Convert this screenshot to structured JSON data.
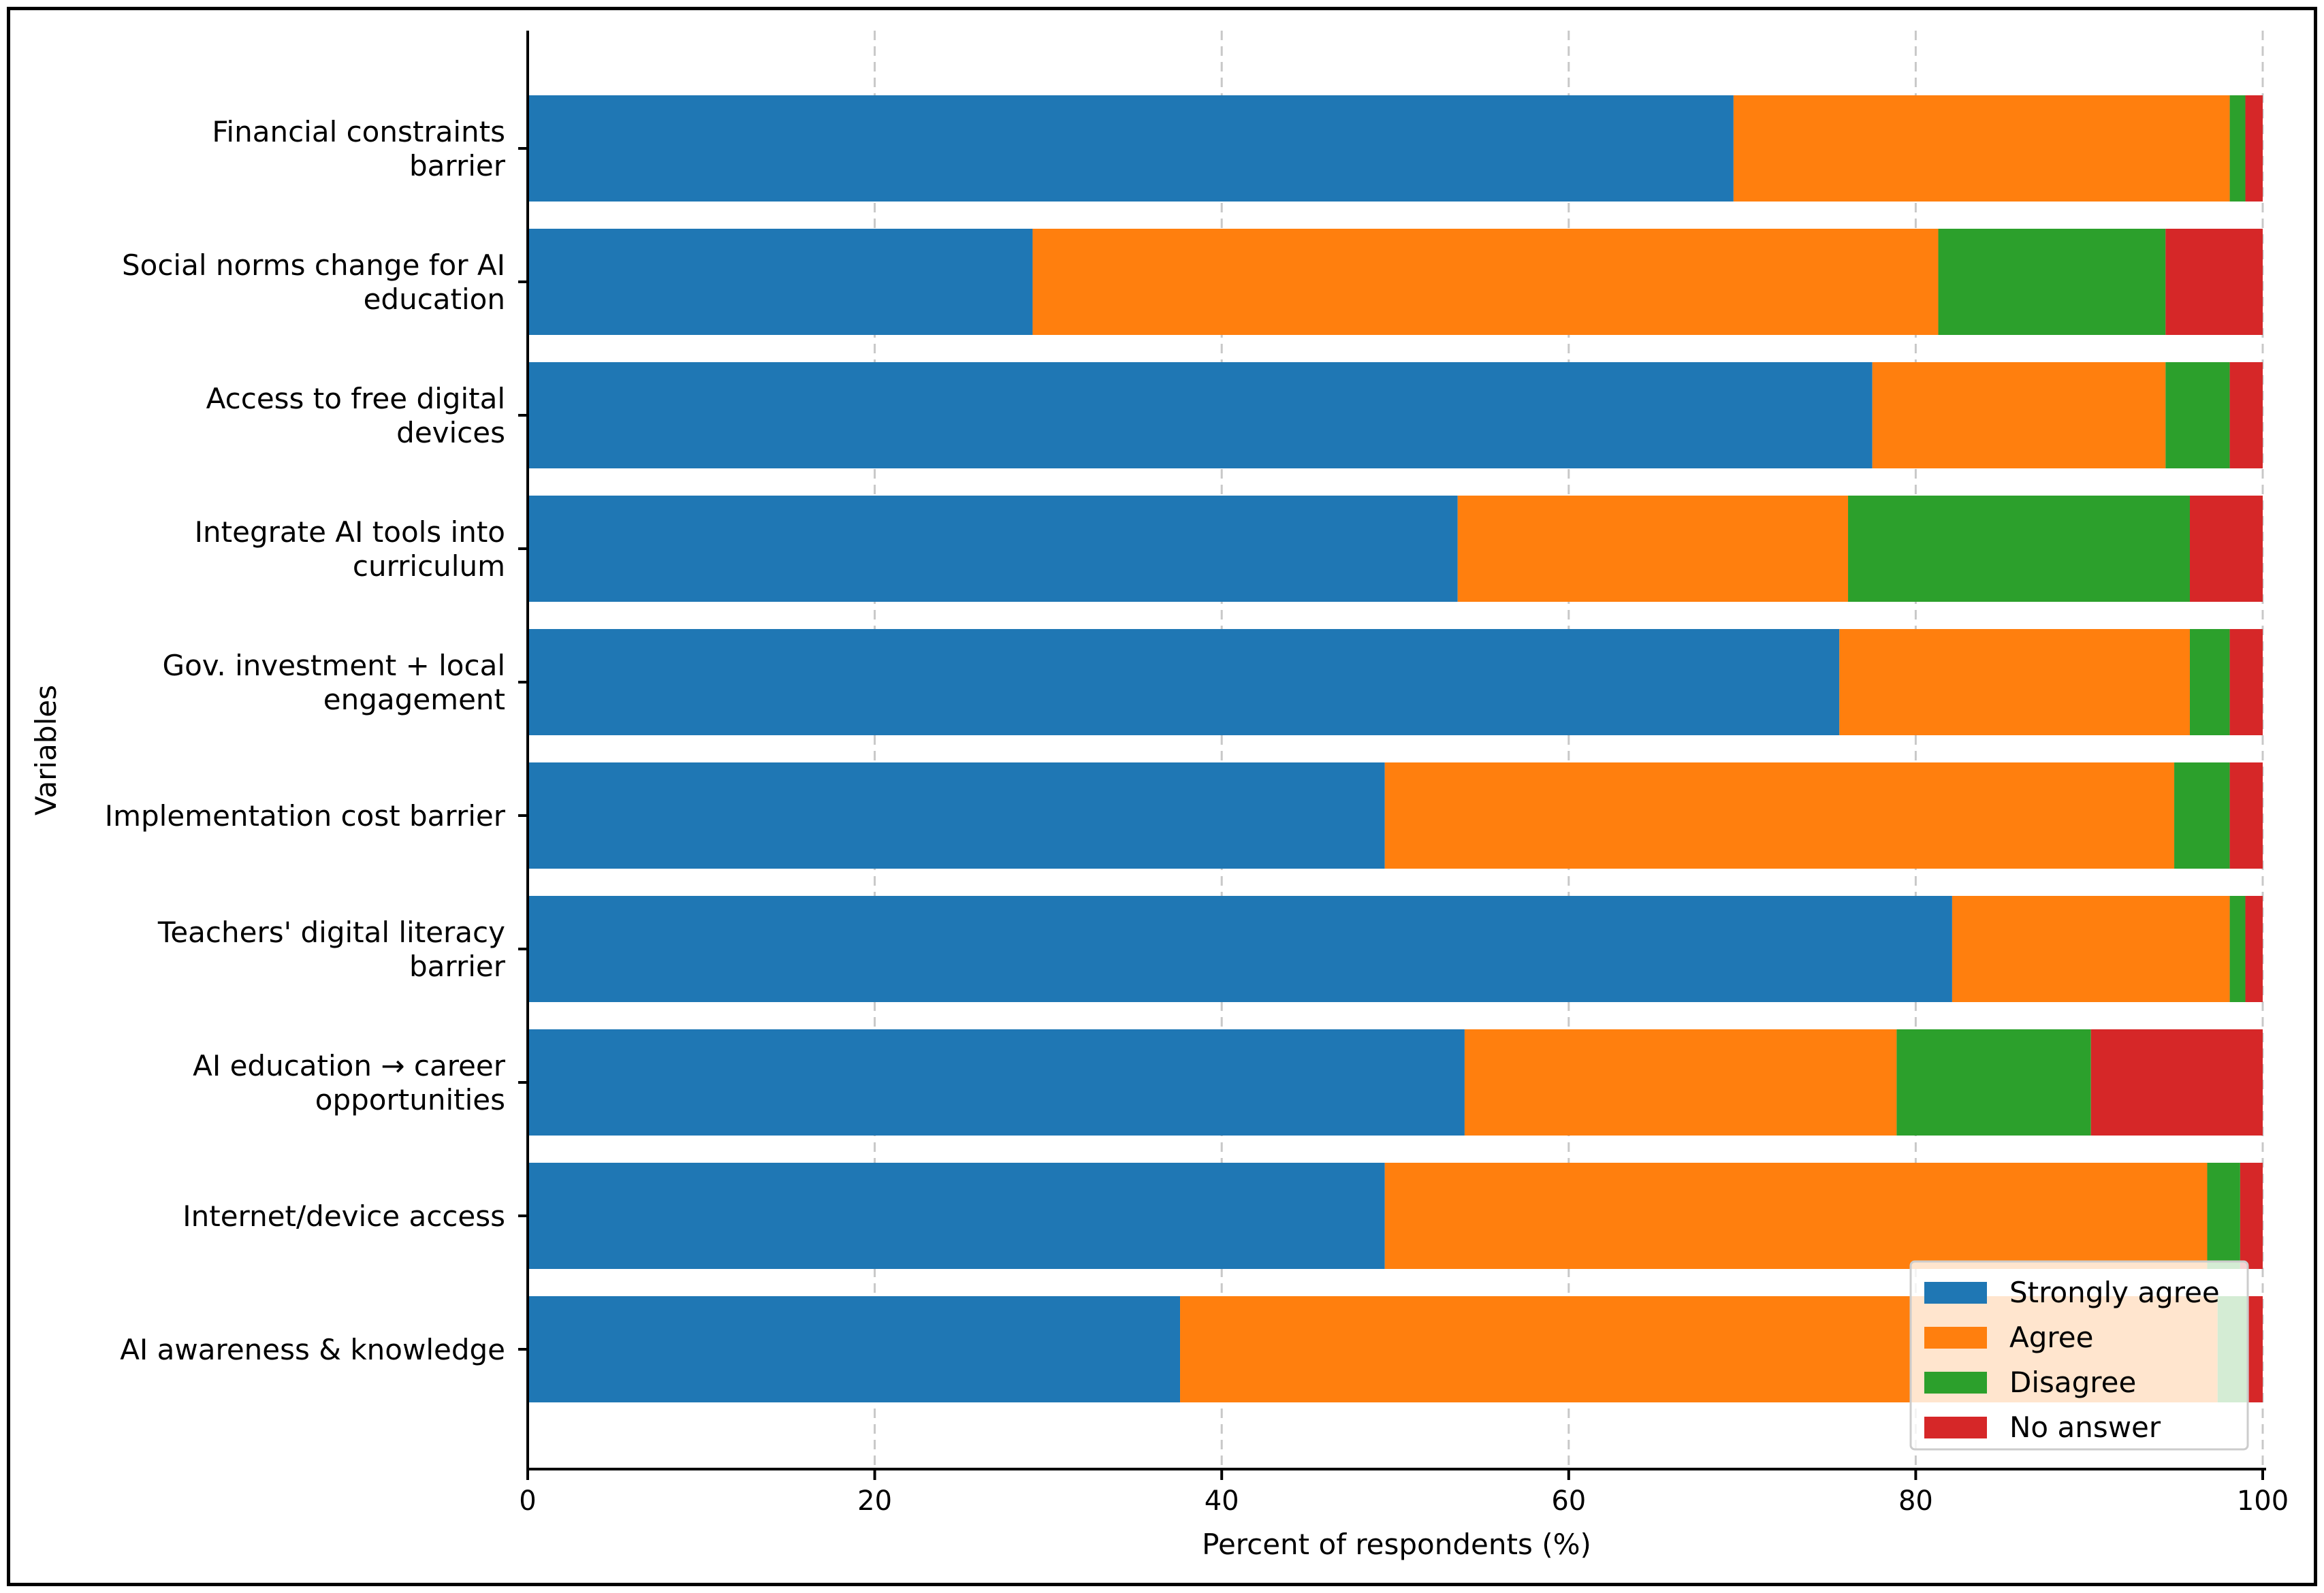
{
  "chart_data": {
    "type": "bar",
    "orientation": "horizontal",
    "stacked": true,
    "xlabel": "Percent of respondents (%)",
    "ylabel": "Variables",
    "xlim": [
      0,
      100
    ],
    "xticks": [
      "0",
      "20",
      "40",
      "60",
      "80",
      "100"
    ],
    "grid": "vertical dashed",
    "legend_position": "bottom-right",
    "categories": [
      "Financial constraints\nbarrier",
      "Social norms change for AI\neducation",
      "Access to free digital\ndevices",
      "Integrate AI tools into\ncurriculum",
      "Gov. investment + local\nengagement",
      "Implementation cost barrier",
      "Teachers' digital literacy\nbarrier",
      "AI education → career\nopportunities",
      "Internet/device access",
      "AI awareness & knowledge"
    ],
    "series": [
      {
        "name": "Strongly agree",
        "color": "#1f77b4",
        "values": [
          69.5,
          29.1,
          77.5,
          53.6,
          75.6,
          49.4,
          82.1,
          54.0,
          49.4,
          37.6
        ]
      },
      {
        "name": "Agree",
        "color": "#ff7f0e",
        "values": [
          28.6,
          52.2,
          16.9,
          22.5,
          20.2,
          45.5,
          16.0,
          24.9,
          47.4,
          59.8
        ]
      },
      {
        "name": "Disagree",
        "color": "#2ca02c",
        "values": [
          0.9,
          13.1,
          3.7,
          19.7,
          2.3,
          3.2,
          0.9,
          11.2,
          1.9,
          1.8
        ]
      },
      {
        "name": "No answer",
        "color": "#d62728",
        "values": [
          1.0,
          5.6,
          1.9,
          4.2,
          1.9,
          1.9,
          1.0,
          9.9,
          1.3,
          0.8
        ]
      }
    ]
  }
}
